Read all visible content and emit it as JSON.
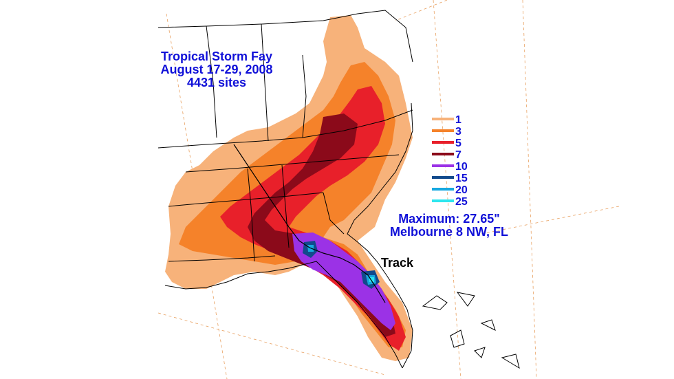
{
  "title": {
    "line1": "Tropical Storm Fay",
    "line2": "August 17-29, 2008",
    "line3": "4431 sites"
  },
  "legend": {
    "entries": [
      {
        "label": "1",
        "color": "#f7b27a"
      },
      {
        "label": "3",
        "color": "#f5822a"
      },
      {
        "label": "5",
        "color": "#e8202a"
      },
      {
        "label": "7",
        "color": "#8b0a1a"
      },
      {
        "label": "10",
        "color": "#9b32e6"
      },
      {
        "label": "15",
        "color": "#124a8c"
      },
      {
        "label": "20",
        "color": "#16a8e0"
      },
      {
        "label": "25",
        "color": "#2ee6ee"
      }
    ]
  },
  "maximum": {
    "line1": "Maximum: 27.65\"",
    "line2": "Melbourne 8 NW, FL"
  },
  "track_label": "Track",
  "colors": {
    "label_blue": "#1010d8",
    "track_black": "#000000",
    "background": "#ffffff"
  }
}
